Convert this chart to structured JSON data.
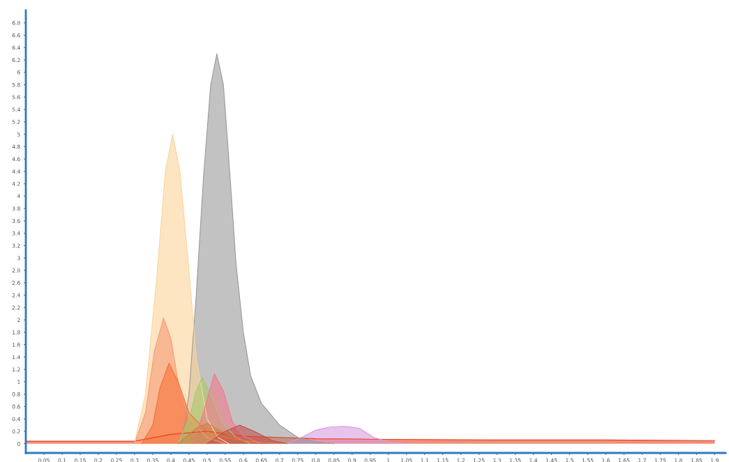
{
  "chart_data": {
    "type": "area",
    "xlim": [
      0,
      1.93
    ],
    "ylim": [
      -0.15,
      7.0
    ],
    "xticks": [
      0.05,
      0.1,
      0.15,
      0.2,
      0.25,
      0.3,
      0.35,
      0.4,
      0.45,
      0.5,
      0.55,
      0.6,
      0.65,
      0.7,
      0.75,
      0.8,
      0.85,
      0.9,
      0.95,
      1,
      1.05,
      1.1,
      1.15,
      1.2,
      1.25,
      1.3,
      1.35,
      1.4,
      1.45,
      1.5,
      1.55,
      1.6,
      1.65,
      1.7,
      1.75,
      1.8,
      1.85,
      1.9
    ],
    "yticks": [
      0,
      0.2,
      0.4,
      0.6,
      0.8,
      1,
      1.2,
      1.4,
      1.6,
      1.8,
      2,
      2.2,
      2.4,
      2.6,
      2.8,
      3,
      3.2,
      3.4,
      3.6,
      3.8,
      4,
      4.2,
      4.4,
      4.6,
      4.8,
      5,
      5.2,
      5.4,
      5.6,
      5.8,
      6,
      6.2,
      6.4,
      6.6,
      6.8
    ],
    "grid": false,
    "legend": false,
    "marker": "none",
    "line_style": "solid",
    "series": [
      {
        "color": "#e8421f",
        "x": [
          0,
          0.3,
          0.4,
          0.5,
          0.6,
          0.8,
          1.0,
          1.3,
          1.6,
          1.9
        ],
        "values": [
          0.04,
          0.04,
          0.15,
          0.2,
          0.12,
          0.08,
          0.07,
          0.06,
          0.06,
          0.05
        ]
      },
      {
        "color": "#d99be0",
        "x": [
          0.72,
          0.76,
          0.8,
          0.84,
          0.88,
          0.92,
          0.96,
          1.0,
          1.05
        ],
        "values": [
          0,
          0.1,
          0.22,
          0.27,
          0.28,
          0.25,
          0.1,
          0.03,
          0
        ]
      },
      {
        "color": "#9a9a9a",
        "x": [
          0.43,
          0.45,
          0.47,
          0.49,
          0.51,
          0.527,
          0.545,
          0.56,
          0.58,
          0.6,
          0.62,
          0.65,
          0.7,
          0.75,
          0.8,
          0.85
        ],
        "values": [
          0,
          0.8,
          2.4,
          4.3,
          5.8,
          6.3,
          5.8,
          4.6,
          2.9,
          1.8,
          1.1,
          0.65,
          0.3,
          0.1,
          0.03,
          0
        ]
      },
      {
        "color": "#fbd39a",
        "x": [
          0.3,
          0.33,
          0.36,
          0.385,
          0.405,
          0.425,
          0.45,
          0.47,
          0.5,
          0.53,
          0.56
        ],
        "values": [
          0,
          0.8,
          2.6,
          4.4,
          5.0,
          4.4,
          2.8,
          1.4,
          0.4,
          0.1,
          0
        ]
      },
      {
        "color": "#f79a74",
        "x": [
          0.3,
          0.33,
          0.355,
          0.38,
          0.4,
          0.42,
          0.45,
          0.5,
          0.55
        ],
        "values": [
          0,
          0.5,
          1.5,
          2.03,
          1.7,
          1.0,
          0.4,
          0.1,
          0
        ]
      },
      {
        "color": "#f7703a",
        "x": [
          0.32,
          0.35,
          0.37,
          0.395,
          0.42,
          0.45,
          0.5,
          0.55,
          0.6,
          0.7
        ],
        "values": [
          0,
          0.3,
          0.9,
          1.3,
          1.0,
          0.5,
          0.2,
          0.1,
          0.05,
          0
        ]
      },
      {
        "color": "#a9c86b",
        "x": [
          0.42,
          0.45,
          0.47,
          0.487,
          0.51,
          0.54,
          0.58,
          0.62
        ],
        "values": [
          0,
          0.4,
          0.85,
          1.07,
          0.8,
          0.35,
          0.1,
          0
        ]
      },
      {
        "color": "#f07a8a",
        "x": [
          0.46,
          0.49,
          0.52,
          0.545,
          0.57,
          0.6,
          0.65
        ],
        "values": [
          0,
          0.5,
          1.13,
          0.85,
          0.35,
          0.12,
          0
        ]
      },
      {
        "color": "#c8874a",
        "x": [
          0.42,
          0.47,
          0.5,
          0.54,
          0.6,
          0.65
        ],
        "values": [
          0,
          0.25,
          0.33,
          0.2,
          0.05,
          0
        ]
      },
      {
        "color": "#c0504d",
        "x": [
          0.5,
          0.55,
          0.59,
          0.63,
          0.68,
          0.72
        ],
        "values": [
          0,
          0.2,
          0.3,
          0.2,
          0.05,
          0
        ]
      }
    ]
  }
}
